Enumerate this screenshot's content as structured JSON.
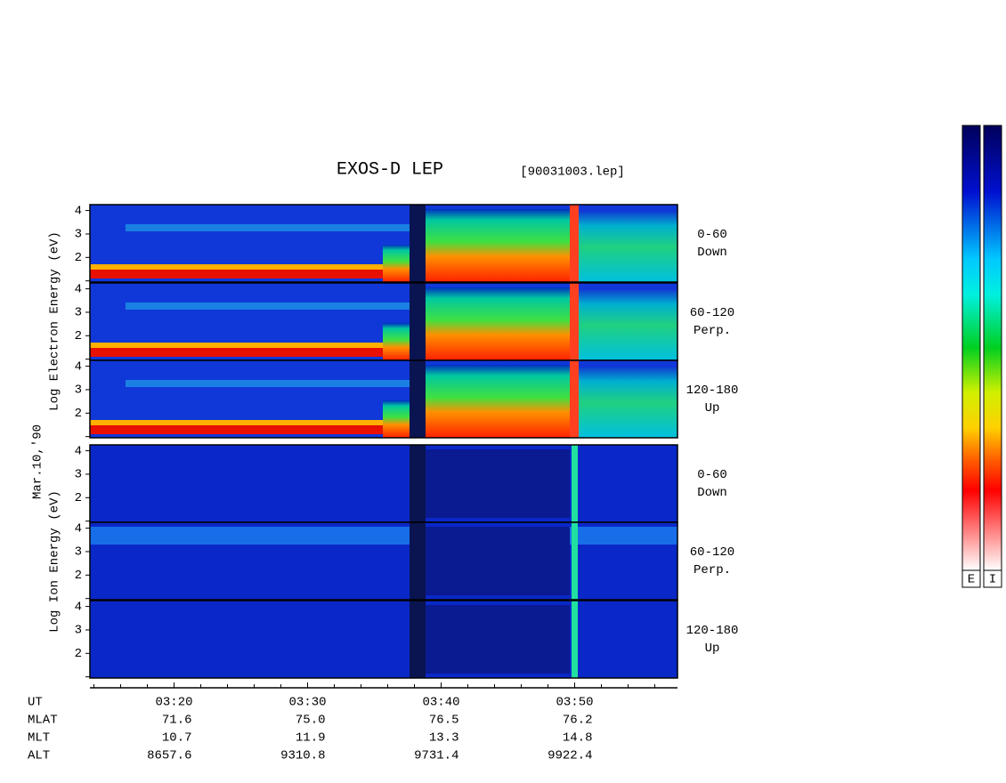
{
  "title": "EXOS-D LEP",
  "file": "[90031003.lep]",
  "date": "Mar.10,'90",
  "electron_label": "Log Electron Energy (eV)",
  "ion_label": "Log Ion Energy (eV)",
  "panels": [
    {
      "angle": "0-60",
      "direction": "Down"
    },
    {
      "angle": "60-120",
      "direction": "Perp."
    },
    {
      "angle": "120-180",
      "direction": "Up"
    },
    {
      "angle": "0-60",
      "direction": "Down"
    },
    {
      "angle": "60-120",
      "direction": "Perp."
    },
    {
      "angle": "120-180",
      "direction": "Up"
    }
  ],
  "ylim": [
    0.95,
    4.25
  ],
  "yticks": [
    2,
    3,
    4
  ],
  "minor_yticks": [
    1
  ],
  "xlim": [
    193.7,
    237.7
  ],
  "xticks": [
    {
      "value": 200,
      "label": "03:20"
    },
    {
      "value": 210,
      "label": "03:30"
    },
    {
      "value": 220,
      "label": "03:40"
    },
    {
      "value": 230,
      "label": "03:50"
    }
  ],
  "minor_xticks": [
    194,
    196,
    198,
    202,
    204,
    206,
    208,
    212,
    214,
    216,
    218,
    222,
    224,
    226,
    228,
    232,
    234,
    236
  ],
  "ephemeris": {
    "labels": [
      "UT",
      "MLAT",
      "MLT",
      "ALT"
    ],
    "rows": [
      [
        "71.6",
        "75.0",
        "76.5",
        "76.2"
      ],
      [
        "10.7",
        "11.9",
        "13.3",
        "14.8"
      ],
      [
        "8657.6",
        "9310.8",
        "9731.4",
        "9922.4"
      ]
    ]
  },
  "colorbars": [
    "E",
    "I"
  ]
}
